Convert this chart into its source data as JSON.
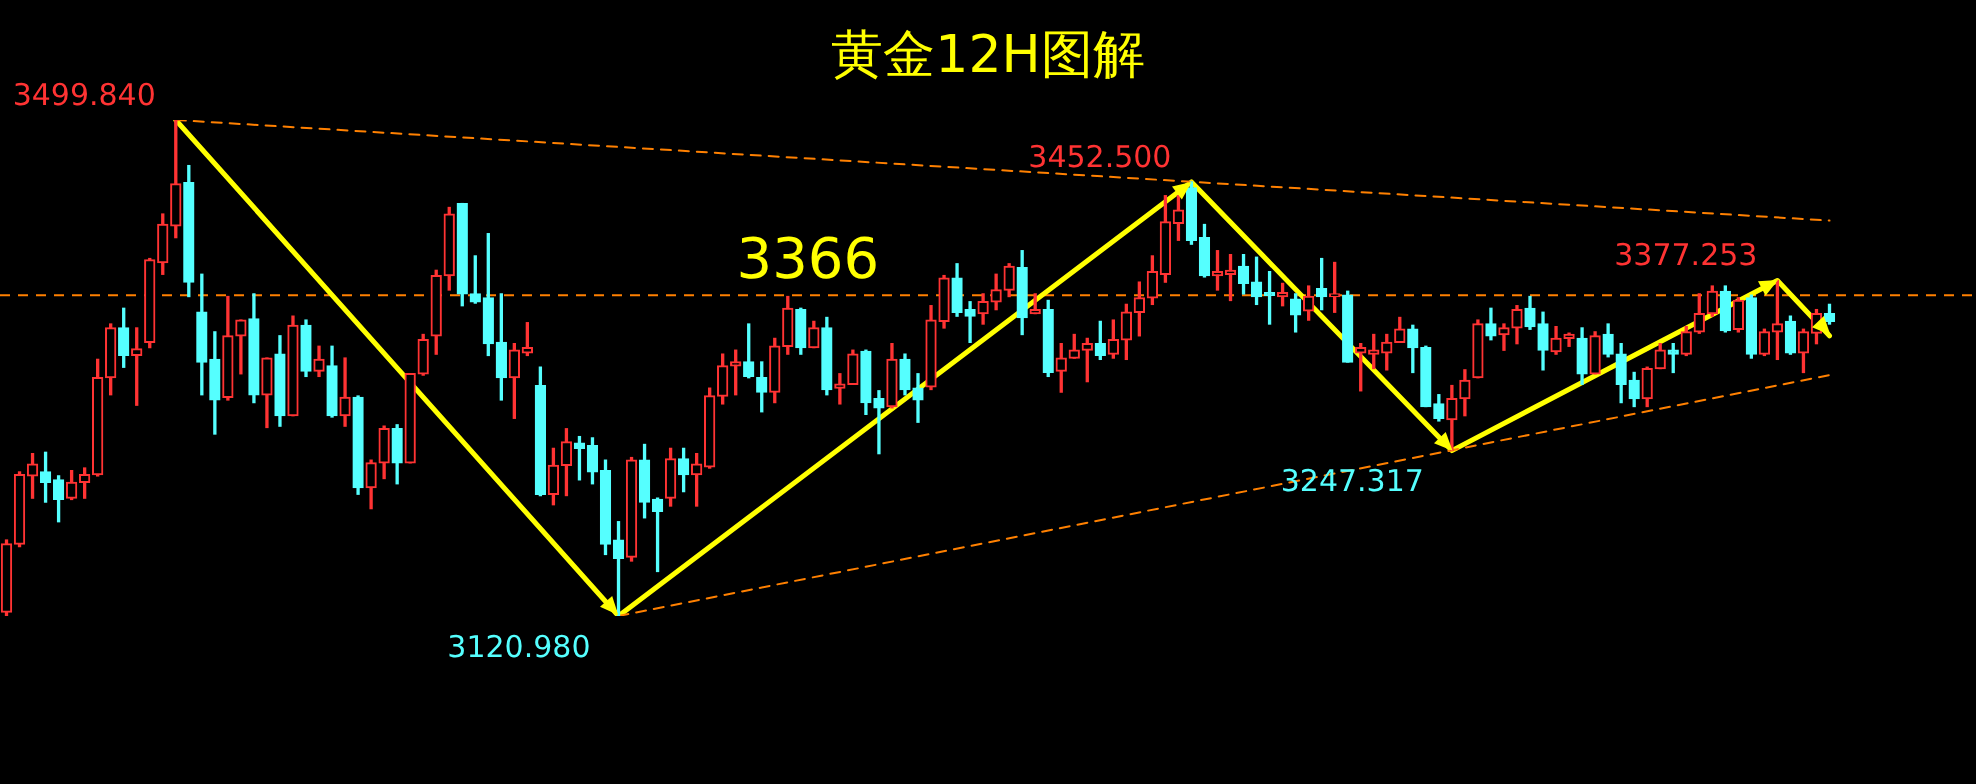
{
  "chart_data": {
    "type": "candlestick",
    "title": "黄金12H图解",
    "categories": [
      null,
      null,
      null,
      null,
      null,
      null,
      null,
      null,
      null,
      null,
      null,
      null,
      null,
      null,
      null,
      null,
      null,
      null,
      null,
      null,
      null,
      null,
      null,
      null,
      null,
      null,
      null,
      null,
      null,
      null,
      null,
      null,
      null,
      null,
      null,
      null,
      null,
      null,
      null,
      null,
      null,
      null,
      null,
      null,
      null,
      null,
      null,
      null,
      null,
      null,
      null,
      null,
      null,
      null,
      null,
      null,
      null,
      null,
      null,
      null,
      null,
      null,
      null,
      null,
      null,
      null,
      null,
      null,
      null,
      null,
      null,
      null,
      null,
      null,
      null,
      null,
      null,
      null,
      null,
      null,
      null,
      null,
      null,
      null,
      null,
      null,
      null,
      null,
      null,
      null,
      null,
      null,
      null,
      null,
      null,
      null,
      null,
      null,
      null,
      null,
      null,
      null,
      null,
      null,
      null,
      null,
      null,
      null,
      null,
      null,
      null,
      null,
      null,
      null,
      null,
      null,
      null,
      null,
      null,
      null,
      null,
      null,
      null,
      null,
      null,
      null,
      null,
      null,
      null,
      null,
      null,
      null,
      null,
      null,
      null,
      null,
      null,
      null,
      null,
      null,
      null
    ],
    "ohlc": [
      [
        3124,
        3179,
        3121,
        3176
      ],
      [
        3176,
        3231,
        3174,
        3229
      ],
      [
        3228,
        3245,
        3211,
        3237
      ],
      [
        3231,
        3246,
        3208,
        3223
      ],
      [
        3225,
        3228,
        3193,
        3210
      ],
      [
        3211,
        3232,
        3210,
        3223
      ],
      [
        3223,
        3234,
        3211,
        3229
      ],
      [
        3229,
        3317,
        3228,
        3303
      ],
      [
        3303,
        3344,
        3290,
        3341
      ],
      [
        3341,
        3356,
        3311,
        3320
      ],
      [
        3320,
        3341,
        3282,
        3325
      ],
      [
        3330,
        3394,
        3326,
        3393
      ],
      [
        3391,
        3428,
        3382,
        3420
      ],
      [
        3419,
        3499.84,
        3410,
        3451
      ],
      [
        3452,
        3465,
        3365,
        3376
      ],
      [
        3353,
        3382,
        3290,
        3315
      ],
      [
        3317,
        3338,
        3260,
        3286
      ],
      [
        3288,
        3365,
        3286,
        3335
      ],
      [
        3335,
        3347,
        3306,
        3347
      ],
      [
        3348,
        3367,
        3284,
        3290
      ],
      [
        3290,
        3318,
        3265,
        3318
      ],
      [
        3321,
        3335,
        3266,
        3274
      ],
      [
        3274,
        3350,
        3274,
        3343
      ],
      [
        3343,
        3347,
        3304,
        3308
      ],
      [
        3308,
        3327,
        3304,
        3317
      ],
      [
        3312,
        3327,
        3273,
        3274
      ],
      [
        3274,
        3318,
        3266,
        3288
      ],
      [
        3288,
        3289,
        3214,
        3219
      ],
      [
        3219,
        3240,
        3203,
        3238
      ],
      [
        3238,
        3266,
        3226,
        3264
      ],
      [
        3264,
        3267,
        3222,
        3238
      ],
      [
        3238,
        3306,
        3238,
        3306
      ],
      [
        3306,
        3336,
        3305,
        3332
      ],
      [
        3335,
        3385,
        3321,
        3381
      ],
      [
        3381,
        3433,
        3370,
        3428
      ],
      [
        3436,
        3436,
        3358,
        3367
      ],
      [
        3367,
        3396,
        3360,
        3361
      ],
      [
        3364,
        3413,
        3320,
        3329
      ],
      [
        3330,
        3367,
        3286,
        3303
      ],
      [
        3303,
        3329,
        3272,
        3324
      ],
      [
        3322,
        3345,
        3320,
        3326
      ],
      [
        3297,
        3311,
        3213,
        3214
      ],
      [
        3214,
        3249,
        3206,
        3236
      ],
      [
        3236,
        3264,
        3213,
        3254
      ],
      [
        3253,
        3258,
        3225,
        3249
      ],
      [
        3251,
        3257,
        3222,
        3231
      ],
      [
        3232,
        3240,
        3168,
        3176
      ],
      [
        3179,
        3193,
        3120.98,
        3165
      ],
      [
        3166,
        3242,
        3163,
        3240
      ],
      [
        3240,
        3252,
        3196,
        3208
      ],
      [
        3210,
        3211,
        3155,
        3201
      ],
      [
        3211,
        3249,
        3205,
        3241
      ],
      [
        3241,
        3249,
        3216,
        3229
      ],
      [
        3229,
        3245,
        3205,
        3237
      ],
      [
        3235,
        3295,
        3234,
        3289
      ],
      [
        3289,
        3321,
        3283,
        3312
      ],
      [
        3312,
        3324,
        3290,
        3315
      ],
      [
        3315,
        3344,
        3303,
        3304
      ],
      [
        3303,
        3315,
        3277,
        3292
      ],
      [
        3292,
        3333,
        3284,
        3327
      ],
      [
        3327,
        3365,
        3321,
        3356
      ],
      [
        3355,
        3356,
        3321,
        3326
      ],
      [
        3326,
        3346,
        3326,
        3341
      ],
      [
        3341,
        3349,
        3290,
        3294
      ],
      [
        3295,
        3306,
        3283,
        3298
      ],
      [
        3298,
        3324,
        3298,
        3321
      ],
      [
        3323,
        3324,
        3275,
        3284
      ],
      [
        3287,
        3293,
        3245,
        3280
      ],
      [
        3281,
        3329,
        3280,
        3317
      ],
      [
        3317,
        3321,
        3290,
        3294
      ],
      [
        3295,
        3306,
        3269,
        3286
      ],
      [
        3296,
        3358,
        3294,
        3347
      ],
      [
        3346,
        3381,
        3341,
        3379
      ],
      [
        3379,
        3390,
        3350,
        3353
      ],
      [
        3355,
        3361,
        3330,
        3350
      ],
      [
        3352,
        3367,
        3344,
        3361
      ],
      [
        3361,
        3382,
        3355,
        3370
      ],
      [
        3370,
        3390,
        3365,
        3388
      ],
      [
        3387,
        3400,
        3336,
        3349
      ],
      [
        3352,
        3367,
        3352,
        3355
      ],
      [
        3355,
        3362,
        3304,
        3307
      ],
      [
        3308,
        3329,
        3292,
        3318
      ],
      [
        3318,
        3336,
        3318,
        3324
      ],
      [
        3324,
        3333,
        3300,
        3329
      ],
      [
        3329,
        3346,
        3317,
        3320
      ],
      [
        3321,
        3347,
        3318,
        3332
      ],
      [
        3332,
        3359,
        3317,
        3353
      ],
      [
        3353,
        3376,
        3335,
        3364
      ],
      [
        3364,
        3396,
        3359,
        3384
      ],
      [
        3382,
        3442,
        3376,
        3422
      ],
      [
        3421,
        3442,
        3408,
        3431
      ],
      [
        3448,
        3452.5,
        3405,
        3408
      ],
      [
        3410,
        3420,
        3380,
        3381
      ],
      [
        3381,
        3400,
        3370,
        3384
      ],
      [
        3382,
        3397,
        3362,
        3385
      ],
      [
        3388,
        3397,
        3367,
        3375
      ],
      [
        3376,
        3395,
        3359,
        3365
      ],
      [
        3368,
        3384,
        3344,
        3366
      ],
      [
        3365,
        3375,
        3358,
        3368
      ],
      [
        3363,
        3367,
        3338,
        3351
      ],
      [
        3354,
        3373,
        3347,
        3365
      ],
      [
        3371,
        3394,
        3355,
        3365
      ],
      [
        3365,
        3391,
        3353,
        3367
      ],
      [
        3366,
        3369,
        3315,
        3315
      ],
      [
        3322,
        3329,
        3293,
        3326
      ],
      [
        3321,
        3336,
        3310,
        3324
      ],
      [
        3322,
        3336,
        3309,
        3330
      ],
      [
        3330,
        3349,
        3330,
        3340
      ],
      [
        3340,
        3343,
        3307,
        3326
      ],
      [
        3326,
        3327,
        3281,
        3281
      ],
      [
        3283,
        3290,
        3270,
        3272
      ],
      [
        3271,
        3297,
        3247.317,
        3287
      ],
      [
        3287,
        3309,
        3274,
        3301
      ],
      [
        3303,
        3347,
        3303,
        3344
      ],
      [
        3344,
        3356,
        3332,
        3335
      ],
      [
        3336,
        3344,
        3324,
        3341
      ],
      [
        3341,
        3358,
        3329,
        3355
      ],
      [
        3356,
        3365,
        3340,
        3342
      ],
      [
        3344,
        3353,
        3309,
        3324
      ],
      [
        3323,
        3342,
        3321,
        3333
      ],
      [
        3333,
        3337,
        3327,
        3336
      ],
      [
        3333,
        3341,
        3298,
        3306
      ],
      [
        3306,
        3338,
        3306,
        3335
      ],
      [
        3336,
        3344,
        3319,
        3321
      ],
      [
        3321,
        3329,
        3284,
        3298
      ],
      [
        3301,
        3307,
        3281,
        3287
      ],
      [
        3287,
        3311,
        3281,
        3310
      ],
      [
        3310,
        3329,
        3310,
        3324
      ],
      [
        3324,
        3329,
        3307,
        3321
      ],
      [
        3321,
        3342,
        3320,
        3338
      ],
      [
        3338,
        3367,
        3337,
        3352
      ],
      [
        3352,
        3373,
        3350,
        3369
      ],
      [
        3369,
        3373,
        3338,
        3339
      ],
      [
        3340,
        3364,
        3338,
        3362
      ],
      [
        3364,
        3366,
        3318,
        3321
      ],
      [
        3321,
        3340,
        3320,
        3338
      ],
      [
        3338,
        3377.253,
        3317,
        3344
      ],
      [
        3346,
        3350,
        3321,
        3322
      ],
      [
        3322,
        3340,
        3307,
        3338
      ],
      [
        3337,
        3355,
        3329,
        3352
      ],
      [
        3352,
        3359,
        3344,
        3346
      ]
    ],
    "colors": [
      "#ff3333",
      "#ff3333",
      "#ff3333",
      "#55ffff",
      "#55ffff",
      "#ff3333",
      "#ff3333",
      "#ff3333",
      "#ff3333",
      "#55ffff",
      "#ff3333",
      "#ff3333",
      "#ff3333",
      "#ff3333",
      "#55ffff",
      "#55ffff",
      "#55ffff",
      "#ff3333",
      "#ff3333",
      "#55ffff",
      "#ff3333",
      "#55ffff",
      "#ff3333",
      "#55ffff",
      "#ff3333",
      "#55ffff",
      "#ff3333",
      "#55ffff",
      "#ff3333",
      "#ff3333",
      "#55ffff",
      "#ff3333",
      "#ff3333",
      "#ff3333",
      "#ff3333",
      "#55ffff",
      "#55ffff",
      "#55ffff",
      "#55ffff",
      "#ff3333",
      "#ff3333",
      "#55ffff",
      "#ff3333",
      "#ff3333",
      "#55ffff",
      "#55ffff",
      "#55ffff",
      "#55ffff",
      "#ff3333",
      "#55ffff",
      "#55ffff",
      "#ff3333",
      "#55ffff",
      "#ff3333",
      "#ff3333",
      "#ff3333",
      "#ff3333",
      "#55ffff",
      "#55ffff",
      "#ff3333",
      "#ff3333",
      "#55ffff",
      "#ff3333",
      "#55ffff",
      "#ff3333",
      "#ff3333",
      "#55ffff",
      "#55ffff",
      "#ff3333",
      "#55ffff",
      "#55ffff",
      "#ff3333",
      "#ff3333",
      "#55ffff",
      "#55ffff",
      "#ff3333",
      "#ff3333",
      "#ff3333",
      "#55ffff",
      "#ff3333",
      "#55ffff",
      "#ff3333",
      "#ff3333",
      "#ff3333",
      "#55ffff",
      "#ff3333",
      "#ff3333",
      "#ff3333",
      "#ff3333",
      "#ff3333",
      "#ff3333",
      "#55ffff",
      "#55ffff",
      "#ff3333",
      "#ff3333",
      "#55ffff",
      "#55ffff",
      "#55ffff",
      "#ff3333",
      "#55ffff",
      "#ff3333",
      "#55ffff",
      "#ff3333",
      "#55ffff",
      "#ff3333",
      "#ff3333",
      "#ff3333",
      "#ff3333",
      "#55ffff",
      "#55ffff",
      "#55ffff",
      "#ff3333",
      "#ff3333",
      "#ff3333",
      "#55ffff",
      "#ff3333",
      "#ff3333",
      "#55ffff",
      "#55ffff",
      "#ff3333",
      "#ff3333",
      "#55ffff",
      "#ff3333",
      "#55ffff",
      "#55ffff",
      "#55ffff",
      "#ff3333",
      "#ff3333",
      "#55ffff",
      "#ff3333",
      "#ff3333",
      "#ff3333",
      "#55ffff",
      "#ff3333",
      "#55ffff",
      "#ff3333",
      "#ff3333",
      "#55ffff",
      "#ff3333",
      "#ff3333",
      "#55ffff"
    ],
    "series": [
      {
        "type": "line",
        "color": "#ff8000",
        "line_style": "dashed",
        "values": [
          null,
          null,
          null,
          null,
          null,
          null,
          null,
          null,
          null,
          null,
          null,
          null,
          null,
          3499.84,
          null,
          null,
          null,
          null,
          null,
          null,
          null,
          null,
          null,
          null,
          null,
          null,
          null,
          null,
          null,
          null,
          null,
          null,
          null,
          null,
          null,
          null,
          null,
          null,
          null,
          null,
          null,
          null,
          null,
          null,
          null,
          null,
          null,
          null,
          null,
          null,
          null,
          null,
          null,
          null,
          null,
          null,
          null,
          null,
          null,
          null,
          null,
          null,
          null,
          null,
          null,
          null,
          null,
          null,
          null,
          null,
          null,
          null,
          null,
          null,
          null,
          null,
          null,
          null,
          null,
          null,
          null,
          null,
          null,
          null,
          null,
          null,
          null,
          null,
          null,
          null,
          null,
          null,
          null,
          null,
          null,
          null,
          null,
          null,
          null,
          null,
          null,
          null,
          null,
          null,
          null,
          null,
          null,
          null,
          null,
          null,
          null,
          null,
          null,
          null,
          null,
          null,
          null,
          null,
          null,
          null,
          null,
          null,
          null,
          null,
          null,
          null,
          null,
          null,
          null,
          null,
          null,
          null,
          null,
          null,
          null,
          null,
          null,
          null,
          null,
          null,
          3423
        ]
      },
      {
        "type": "line",
        "color": "#ff8000",
        "line_style": "dashed",
        "values": [
          null,
          null,
          null,
          null,
          null,
          null,
          null,
          null,
          null,
          null,
          null,
          null,
          null,
          null,
          null,
          null,
          null,
          null,
          null,
          null,
          null,
          null,
          null,
          null,
          null,
          null,
          null,
          null,
          null,
          null,
          null,
          null,
          null,
          null,
          null,
          null,
          null,
          null,
          null,
          null,
          null,
          null,
          null,
          null,
          null,
          null,
          null,
          3120.98,
          null,
          null,
          null,
          null,
          null,
          null,
          null,
          null,
          null,
          null,
          null,
          null,
          null,
          null,
          null,
          null,
          null,
          null,
          null,
          null,
          null,
          null,
          null,
          null,
          null,
          null,
          null,
          null,
          null,
          null,
          null,
          null,
          null,
          null,
          null,
          null,
          null,
          null,
          null,
          null,
          null,
          null,
          null,
          null,
          null,
          null,
          null,
          null,
          null,
          null,
          null,
          null,
          null,
          null,
          null,
          null,
          null,
          null,
          null,
          null,
          null,
          null,
          null,
          null,
          null,
          null,
          null,
          null,
          null,
          null,
          null,
          null,
          null,
          null,
          null,
          null,
          null,
          null,
          null,
          null,
          null,
          null,
          null,
          null,
          null,
          null,
          null,
          null,
          null,
          null,
          null,
          null,
          3305
        ]
      },
      {
        "type": "line",
        "color": "#ffff00",
        "line_style": "solid",
        "values": [
          null,
          null,
          null,
          null,
          null,
          null,
          null,
          null,
          null,
          null,
          null,
          null,
          null,
          3499.84,
          null,
          null,
          null,
          null,
          null,
          null,
          null,
          null,
          null,
          null,
          null,
          null,
          null,
          null,
          null,
          null,
          null,
          null,
          null,
          null,
          null,
          null,
          null,
          null,
          null,
          null,
          null,
          null,
          null,
          null,
          null,
          null,
          null,
          3120.98,
          null,
          null,
          null,
          null,
          null,
          null,
          null,
          null,
          null,
          null,
          null,
          null,
          null,
          null,
          null,
          null,
          null,
          null,
          null,
          null,
          null,
          null,
          null,
          null,
          null,
          null,
          null,
          null,
          null,
          null,
          null,
          null,
          null,
          null,
          null,
          null,
          null,
          null,
          null,
          null,
          null,
          null,
          null,
          3452.5,
          null,
          null,
          null,
          null,
          null,
          null,
          null,
          null,
          null,
          null,
          null,
          null,
          null,
          null,
          null,
          null,
          null,
          null,
          null,
          3247.317,
          null,
          null,
          null,
          null,
          null,
          null,
          null,
          null,
          null,
          null,
          null,
          null,
          null,
          null,
          null,
          null,
          null,
          null,
          null,
          null,
          null,
          null,
          null,
          null,
          3377.253,
          null,
          null,
          null,
          3335
        ]
      }
    ],
    "ref_lines": [
      {
        "axis": "y",
        "value": 3366,
        "label": "3366",
        "color": "#ff8000",
        "line_style": "dashed"
      }
    ],
    "annotations": [
      "3499.840",
      "3120.980",
      "3452.500",
      "3247.317",
      "3377.253"
    ],
    "legend": false,
    "tick_labels": false
  }
}
